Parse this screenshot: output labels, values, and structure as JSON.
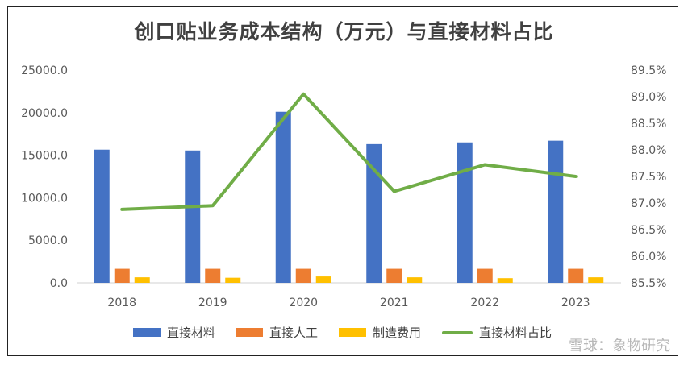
{
  "chart_data": {
    "type": "bar",
    "title": "创口贴业务成本结构（万元）与直接材料占比",
    "categories": [
      "2018",
      "2019",
      "2020",
      "2021",
      "2022",
      "2023"
    ],
    "series": [
      {
        "name": "直接材料",
        "kind": "bar",
        "axis": "left",
        "color": "#4472c4",
        "values": [
          15650,
          15550,
          20100,
          16300,
          16500,
          16700
        ]
      },
      {
        "name": "直接人工",
        "kind": "bar",
        "axis": "left",
        "color": "#ed7d31",
        "values": [
          1650,
          1650,
          1650,
          1650,
          1650,
          1650
        ]
      },
      {
        "name": "制造费用",
        "kind": "bar",
        "axis": "left",
        "color": "#ffc000",
        "values": [
          650,
          600,
          750,
          650,
          550,
          650
        ]
      },
      {
        "name": "直接材料占比",
        "kind": "line",
        "axis": "right",
        "color": "#70ad47",
        "values": [
          86.88,
          86.95,
          89.05,
          87.22,
          87.72,
          87.5
        ]
      }
    ],
    "left_axis": {
      "min": 0,
      "max": 25000,
      "ticks": [
        "0.0",
        "5000.0",
        "10000.0",
        "15000.0",
        "20000.0",
        "25000.0"
      ]
    },
    "right_axis": {
      "min": 85.5,
      "max": 89.5,
      "ticks": [
        "85.5%",
        "86.0%",
        "86.5%",
        "87.0%",
        "87.5%",
        "88.0%",
        "88.5%",
        "89.0%",
        "89.5%"
      ]
    },
    "grid": false,
    "legend_position": "bottom"
  },
  "watermark": "雪球：象物研究"
}
